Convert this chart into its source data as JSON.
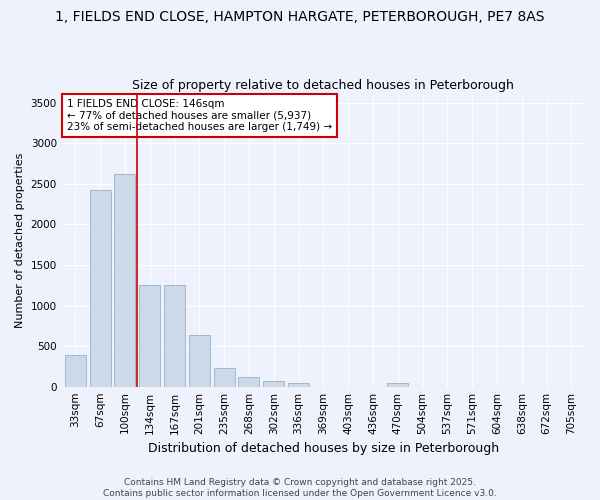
{
  "title": "1, FIELDS END CLOSE, HAMPTON HARGATE, PETERBOROUGH, PE7 8AS",
  "subtitle": "Size of property relative to detached houses in Peterborough",
  "xlabel": "Distribution of detached houses by size in Peterborough",
  "ylabel": "Number of detached properties",
  "bar_color": "#ccd9e8",
  "bar_edge_color": "#9ab0c8",
  "categories": [
    "33sqm",
    "67sqm",
    "100sqm",
    "134sqm",
    "167sqm",
    "201sqm",
    "235sqm",
    "268sqm",
    "302sqm",
    "336sqm",
    "369sqm",
    "403sqm",
    "436sqm",
    "470sqm",
    "504sqm",
    "537sqm",
    "571sqm",
    "604sqm",
    "638sqm",
    "672sqm",
    "705sqm"
  ],
  "values": [
    390,
    2420,
    2620,
    1250,
    1250,
    640,
    230,
    120,
    70,
    50,
    0,
    0,
    0,
    50,
    0,
    0,
    0,
    0,
    0,
    0,
    0
  ],
  "ylim": [
    0,
    3600
  ],
  "yticks": [
    0,
    500,
    1000,
    1500,
    2000,
    2500,
    3000,
    3500
  ],
  "property_line_index": 3,
  "property_line_color": "#cc0000",
  "annotation_title": "1 FIELDS END CLOSE: 146sqm",
  "annotation_line1": "← 77% of detached houses are smaller (5,937)",
  "annotation_line2": "23% of semi-detached houses are larger (1,749) →",
  "annotation_box_color": "#cc0000",
  "footer1": "Contains HM Land Registry data © Crown copyright and database right 2025.",
  "footer2": "Contains public sector information licensed under the Open Government Licence v3.0.",
  "background_color": "#eef2fc",
  "grid_color": "#ffffff",
  "title_fontsize": 10,
  "subtitle_fontsize": 9,
  "xlabel_fontsize": 9,
  "ylabel_fontsize": 8,
  "tick_fontsize": 7.5,
  "footer_fontsize": 6.5,
  "annotation_fontsize": 7.5
}
